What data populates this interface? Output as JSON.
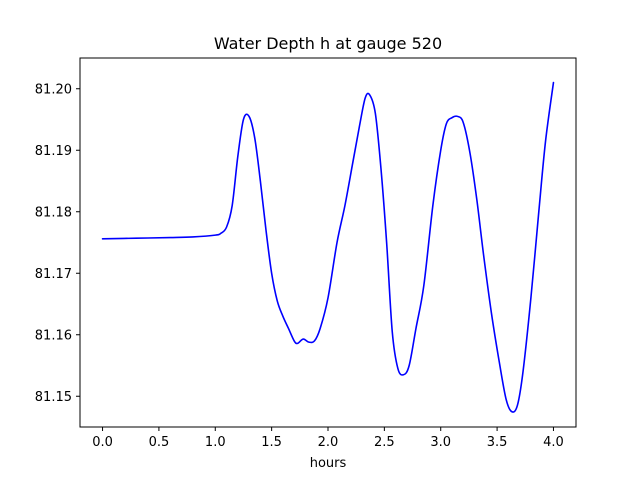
{
  "chart_data": {
    "type": "line",
    "title": "Water Depth h at gauge 520",
    "xlabel": "hours",
    "ylabel": "",
    "xlim": [
      -0.2,
      4.2
    ],
    "ylim": [
      81.145,
      81.205
    ],
    "xticks": [
      0.0,
      0.5,
      1.0,
      1.5,
      2.0,
      2.5,
      3.0,
      3.5,
      4.0
    ],
    "xtick_labels": [
      "0.0",
      "0.5",
      "1.0",
      "1.5",
      "2.0",
      "2.5",
      "3.0",
      "3.5",
      "4.0"
    ],
    "yticks": [
      81.15,
      81.16,
      81.17,
      81.18,
      81.19,
      81.2
    ],
    "ytick_labels": [
      "81.15",
      "81.16",
      "81.17",
      "81.18",
      "81.19",
      "81.20"
    ],
    "grid": false,
    "series": [
      {
        "color": "#0000ff",
        "x": [
          0.0,
          0.3,
          0.6,
          0.8,
          1.0,
          1.05,
          1.1,
          1.15,
          1.2,
          1.25,
          1.3,
          1.35,
          1.4,
          1.45,
          1.5,
          1.55,
          1.6,
          1.65,
          1.7,
          1.73,
          1.78,
          1.83,
          1.88,
          1.93,
          2.0,
          2.08,
          2.15,
          2.22,
          2.28,
          2.33,
          2.37,
          2.42,
          2.47,
          2.52,
          2.57,
          2.62,
          2.67,
          2.72,
          2.78,
          2.85,
          2.93,
          3.0,
          3.05,
          3.1,
          3.15,
          3.2,
          3.26,
          3.32,
          3.38,
          3.45,
          3.52,
          3.58,
          3.63,
          3.68,
          3.73,
          3.8,
          3.87,
          3.93,
          4.0
        ],
        "y": [
          81.1756,
          81.1757,
          81.1758,
          81.1759,
          81.1762,
          81.1765,
          81.1775,
          81.181,
          81.189,
          81.195,
          81.1955,
          81.192,
          81.185,
          81.177,
          81.17,
          81.1655,
          81.163,
          81.161,
          81.159,
          81.1586,
          81.1593,
          81.1588,
          81.159,
          81.161,
          81.166,
          81.175,
          81.181,
          81.188,
          81.194,
          81.1985,
          81.199,
          81.196,
          81.187,
          81.175,
          81.1605,
          81.1545,
          81.1535,
          81.155,
          81.161,
          81.168,
          81.181,
          81.19,
          81.1943,
          81.1953,
          81.1955,
          81.1945,
          81.1895,
          81.182,
          81.173,
          81.1635,
          81.1555,
          81.1495,
          81.1475,
          81.1485,
          81.154,
          81.166,
          81.18,
          81.1915,
          81.201
        ]
      }
    ]
  }
}
